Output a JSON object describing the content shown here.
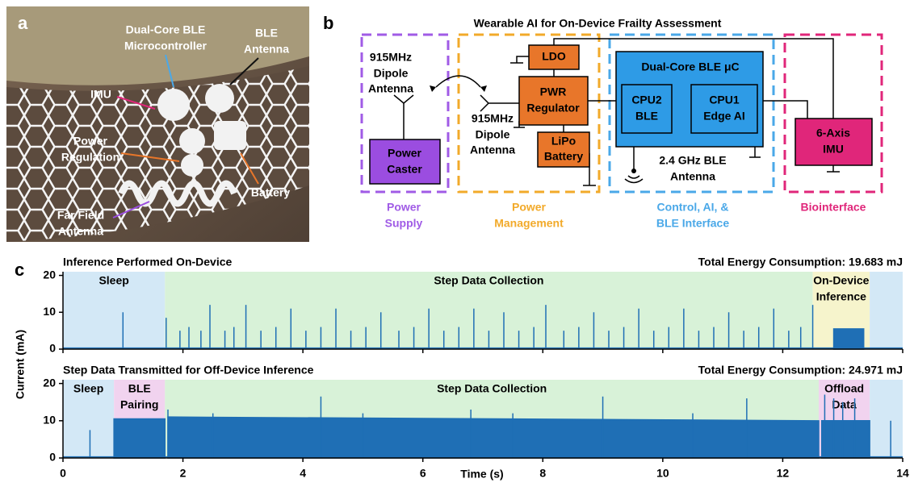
{
  "panel_a": {
    "label": "a",
    "labels": [
      [
        "Dual-Core BLE",
        "Microcontroller"
      ],
      [
        "BLE",
        "Antenna"
      ],
      [
        "IMU"
      ],
      [
        "Power",
        "Regulation"
      ],
      [
        "Battery"
      ],
      [
        "Far Field",
        "Antenna"
      ]
    ]
  },
  "panel_b": {
    "label": "b",
    "title": "Wearable AI for On-Device Frailty Assessment",
    "antenna_left": [
      "915MHz",
      "Dipole",
      "Antenna"
    ],
    "antenna_right": [
      "915MHz",
      "Dipole",
      "Antenna"
    ],
    "power_caster": [
      "Power",
      "Caster"
    ],
    "ldo": "LDO",
    "pwr_regulator": [
      "PWR",
      "Regulator"
    ],
    "battery": [
      "LiPo",
      "Battery"
    ],
    "mcu": "Dual-Core BLE μC",
    "cpu2": [
      "CPU2",
      "BLE"
    ],
    "cpu1": [
      "CPU1",
      "Edge AI"
    ],
    "ble_antenna": [
      "2.4 GHz BLE",
      "Antenna"
    ],
    "imu": [
      "6-Axis",
      "IMU"
    ],
    "groups": [
      [
        "Power",
        "Supply"
      ],
      [
        "Power",
        "Management"
      ],
      [
        "Control, AI, &",
        "BLE Interface"
      ],
      [
        "Biointerface"
      ]
    ]
  },
  "panel_c": {
    "label": "c",
    "ylabel": "Current (mA)",
    "xlabel": "Time (s)"
  },
  "chart_data": [
    {
      "type": "line",
      "title": "Inference Performed On-Device",
      "annotation": "Total Energy Consumption: 19.683 mJ",
      "xlim": [
        0,
        14
      ],
      "xticks": [
        0,
        2,
        4,
        6,
        8,
        10,
        12,
        14
      ],
      "xtick_labels": false,
      "ylim": [
        0,
        21
      ],
      "yticks": [
        0,
        10,
        20
      ],
      "regions": [
        {
          "label": [
            "Sleep"
          ],
          "start": 0,
          "end": 1.7,
          "color": "#d3e8f6"
        },
        {
          "label": [
            "Step Data Collection"
          ],
          "start": 1.7,
          "end": 12.5,
          "color": "#d8f2d8"
        },
        {
          "label": [
            "On-Device",
            "Inference"
          ],
          "start": 12.5,
          "end": 13.45,
          "color": "#f6f4cc"
        },
        {
          "label": null,
          "start": 13.45,
          "end": 14,
          "color": "#d3e8f6"
        }
      ],
      "series": [
        {
          "kind": "line",
          "color": "#1f6fb5",
          "x": [
            0,
            14
          ],
          "values": [
            0.3,
            0.3
          ]
        },
        {
          "kind": "area",
          "color": "#1f6fb5",
          "x": [
            12.85,
            13.35
          ],
          "values": [
            5.5,
            5.5
          ]
        },
        {
          "kind": "spike",
          "color": "#1f6fb5",
          "x": [
            1.0,
            1.72,
            1.95,
            2.1,
            2.3,
            2.45,
            2.7,
            2.85,
            3.05,
            3.3,
            3.55,
            3.8,
            4.05,
            4.3,
            4.55,
            4.8,
            5.05,
            5.3,
            5.6,
            5.85,
            6.1,
            6.35,
            6.6,
            6.85,
            7.1,
            7.35,
            7.6,
            7.85,
            8.05,
            8.35,
            8.6,
            8.85,
            9.1,
            9.35,
            9.6,
            9.85,
            10.1,
            10.35,
            10.6,
            10.85,
            11.1,
            11.35,
            11.6,
            11.85,
            12.1,
            12.3,
            12.5
          ],
          "values": [
            10,
            8.5,
            5,
            6,
            5,
            12,
            5,
            6,
            12,
            5,
            6,
            11,
            5,
            6,
            11,
            5,
            6,
            10,
            5,
            6,
            11,
            5,
            6,
            11,
            5,
            10,
            5,
            6,
            12,
            5,
            6,
            10,
            5,
            6,
            11,
            5,
            6,
            11,
            5,
            6,
            10,
            5,
            6,
            11,
            5,
            6,
            12
          ]
        }
      ]
    },
    {
      "type": "line",
      "title": "Step Data Transmitted for Off-Device Inference",
      "annotation": "Total Energy Consumption: 24.971 mJ",
      "xlim": [
        0,
        14
      ],
      "xticks": [
        0,
        2,
        4,
        6,
        8,
        10,
        12,
        14
      ],
      "xtick_labels": true,
      "ylim": [
        0,
        21
      ],
      "yticks": [
        0,
        10,
        20
      ],
      "regions": [
        {
          "label": [
            "Sleep"
          ],
          "start": 0,
          "end": 0.85,
          "color": "#d3e8f6"
        },
        {
          "label": [
            "BLE",
            "Pairing"
          ],
          "start": 0.85,
          "end": 1.7,
          "color": "#f1d3ef"
        },
        {
          "label": [
            "Step Data Collection"
          ],
          "start": 1.7,
          "end": 12.6,
          "color": "#d8f2d8"
        },
        {
          "label": [
            "Offload",
            "Data"
          ],
          "start": 12.6,
          "end": 13.45,
          "color": "#f1d3ef"
        },
        {
          "label": null,
          "start": 13.45,
          "end": 14,
          "color": "#d3e8f6"
        }
      ],
      "series": [
        {
          "kind": "line",
          "color": "#1f6fb5",
          "x": [
            0,
            14
          ],
          "values": [
            0.3,
            0.3
          ]
        },
        {
          "kind": "area",
          "color": "#1f6fb5",
          "x": [
            0.85,
            1.7,
            1.7,
            1.75,
            12.6,
            12.6,
            12.65,
            13.45
          ],
          "values": [
            10.5,
            10.5,
            null,
            11,
            10,
            null,
            10,
            10
          ]
        },
        {
          "kind": "spike",
          "color": "#1f6fb5",
          "x": [
            0.45,
            1.75,
            2.5,
            4.3,
            5.0,
            6.8,
            7.5,
            9.0,
            10.5,
            11.4,
            12.7,
            12.85,
            13.0,
            13.2,
            13.8
          ],
          "values": [
            7.5,
            13,
            12,
            16.5,
            12,
            13,
            12,
            16.5,
            12,
            16,
            17,
            16,
            15,
            16,
            10
          ]
        }
      ]
    }
  ]
}
